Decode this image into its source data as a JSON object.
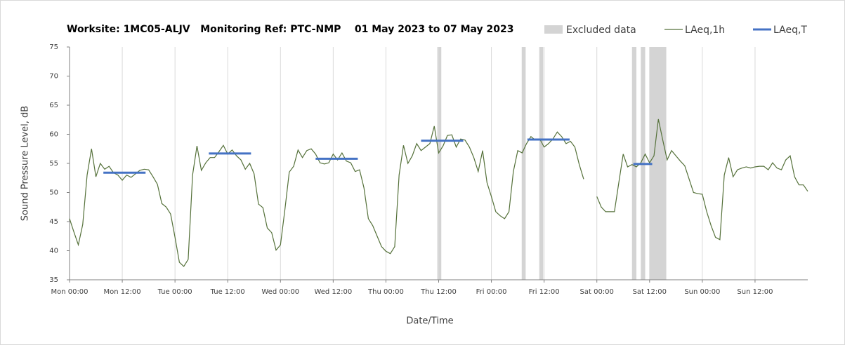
{
  "chart_data": {
    "type": "line",
    "title": "Worksite: 1MC05-ALJV   Monitoring Ref: PTC-NMP    01 May 2023 to 07 May 2023",
    "xlabel": "Date/Time",
    "ylabel": "Sound Pressure Level, dB",
    "xlim": [
      0,
      168
    ],
    "xticks": [
      {
        "value": 0,
        "label": "Mon 00:00"
      },
      {
        "value": 12,
        "label": "Mon 12:00"
      },
      {
        "value": 24,
        "label": "Tue 00:00"
      },
      {
        "value": 36,
        "label": "Tue 12:00"
      },
      {
        "value": 48,
        "label": "Wed 00:00"
      },
      {
        "value": 60,
        "label": "Wed 12:00"
      },
      {
        "value": 72,
        "label": "Thu 00:00"
      },
      {
        "value": 84,
        "label": "Thu 12:00"
      },
      {
        "value": 96,
        "label": "Fri 00:00"
      },
      {
        "value": 108,
        "label": "Fri 12:00"
      },
      {
        "value": 120,
        "label": "Sat 00:00"
      },
      {
        "value": 132,
        "label": "Sat 12:00"
      },
      {
        "value": 144,
        "label": "Sun 00:00"
      },
      {
        "value": 156,
        "label": "Sun 12:00"
      }
    ],
    "ylim": [
      35,
      75
    ],
    "yticks": [
      35,
      40,
      45,
      50,
      55,
      60,
      65,
      70,
      75
    ],
    "grid": "x",
    "excluded": {
      "name": "Excluded data",
      "color": "#d4d4d4",
      "periods": [
        {
          "start": 83.7,
          "end": 84.6
        },
        {
          "start": 102.9,
          "end": 103.8
        },
        {
          "start": 106.9,
          "end": 107.8
        },
        {
          "start": 128,
          "end": 129
        },
        {
          "start": 130,
          "end": 131
        },
        {
          "start": 132,
          "end": 135.8
        }
      ]
    },
    "series": [
      {
        "name": "LAeq,1h",
        "color": "#55713a",
        "x": [
          0,
          1,
          2,
          3,
          4,
          5,
          6,
          7,
          8,
          9,
          10,
          11,
          12,
          13,
          14,
          15,
          16,
          17,
          18,
          19,
          20,
          21,
          22,
          23,
          24,
          25,
          26,
          27,
          28,
          29,
          30,
          31,
          32,
          33,
          34,
          35,
          36,
          37,
          38,
          39,
          40,
          41,
          42,
          43,
          44,
          45,
          46,
          47,
          48,
          49,
          50,
          51,
          52,
          53,
          54,
          55,
          56,
          57,
          58,
          59,
          60,
          61,
          62,
          63,
          64,
          65,
          66,
          67,
          68,
          69,
          70,
          71,
          72,
          73,
          74,
          75,
          76,
          77,
          78,
          79,
          80,
          81,
          82,
          83,
          84,
          85,
          86,
          87,
          88,
          89,
          90,
          91,
          92,
          93,
          94,
          95,
          96,
          97,
          98,
          99,
          100,
          101,
          102,
          103,
          104,
          105,
          106,
          107,
          108,
          109,
          110,
          111,
          112,
          113,
          114,
          115,
          116,
          117,
          118,
          119,
          120,
          121,
          122,
          123,
          124,
          125,
          126,
          127,
          128,
          129,
          130,
          131,
          132,
          133,
          134,
          135,
          136,
          137,
          138,
          139,
          140,
          141,
          142,
          143,
          144,
          145,
          146,
          147,
          148,
          149,
          150,
          151,
          152,
          153,
          154,
          155,
          156,
          157,
          158,
          159,
          160,
          161,
          162,
          163,
          164,
          165,
          166,
          167,
          168
        ],
        "values": [
          45.5,
          43.2,
          41,
          44.5,
          53,
          57.5,
          52.7,
          55,
          54,
          54.5,
          53.4,
          53,
          52.1,
          53,
          52.6,
          53.2,
          53.8,
          54,
          53.9,
          52.7,
          51.4,
          48.1,
          47.5,
          46.3,
          42.3,
          38,
          37.3,
          38.5,
          53,
          58,
          53.8,
          55.1,
          56,
          56,
          57,
          58.1,
          56.6,
          57.3,
          56.3,
          55.6,
          54,
          55,
          53.2,
          48,
          47.4,
          43.9,
          43.1,
          40.1,
          41,
          47,
          53.5,
          54.5,
          57.3,
          56,
          57.2,
          57.5,
          56.6,
          55.1,
          54.9,
          55.1,
          56.6,
          55.6,
          56.8,
          55.4,
          55.1,
          53.6,
          53.9,
          50.8,
          45.5,
          44.3,
          42.5,
          40.7,
          39.9,
          39.5,
          40.7,
          53,
          58.1,
          55,
          56.3,
          58.4,
          57.2,
          57.8,
          58.4,
          61.4,
          56.8,
          58,
          59.8,
          59.9,
          57.8,
          59.2,
          59,
          57.8,
          56,
          53.6,
          57.2,
          51.7,
          49.3,
          46.7,
          46,
          45.5,
          46.7,
          53.6,
          57.2,
          56.8,
          58.4,
          59.6,
          59,
          59.2,
          57.8,
          58.4,
          59.2,
          60.4,
          59.6,
          58.4,
          58.8,
          57.8,
          54.8,
          52.3,
          null,
          null,
          49.3,
          47.5,
          46.7,
          46.7,
          46.7,
          51.7,
          56.6,
          54.4,
          54.8,
          54.4,
          55.1,
          56.6,
          55.1,
          56.3,
          62.6,
          59,
          55.6,
          57.2,
          56.3,
          55.4,
          54.6,
          52.3,
          50,
          49.8,
          49.7,
          46.7,
          44.3,
          42.3,
          41.9,
          53,
          56,
          52.7,
          53.9,
          54.2,
          54.4,
          54.2,
          54.4,
          54.5,
          54.5,
          53.9,
          55.1,
          54.2,
          53.9,
          55.6,
          56.3,
          52.7,
          51.3,
          51.3,
          50.2
        ]
      },
      {
        "name": "LAeq,T",
        "color": "#4472c4",
        "periods": [
          {
            "start": 7.7,
            "end": 17.3,
            "value": 53.4
          },
          {
            "start": 31.7,
            "end": 41.3,
            "value": 56.7
          },
          {
            "start": 56,
            "end": 65.6,
            "value": 55.8
          },
          {
            "start": 80,
            "end": 89.6,
            "value": 58.9
          },
          {
            "start": 104.2,
            "end": 113.8,
            "value": 59.1
          },
          {
            "start": 128.3,
            "end": 132.6,
            "value": 54.9
          }
        ]
      }
    ]
  }
}
